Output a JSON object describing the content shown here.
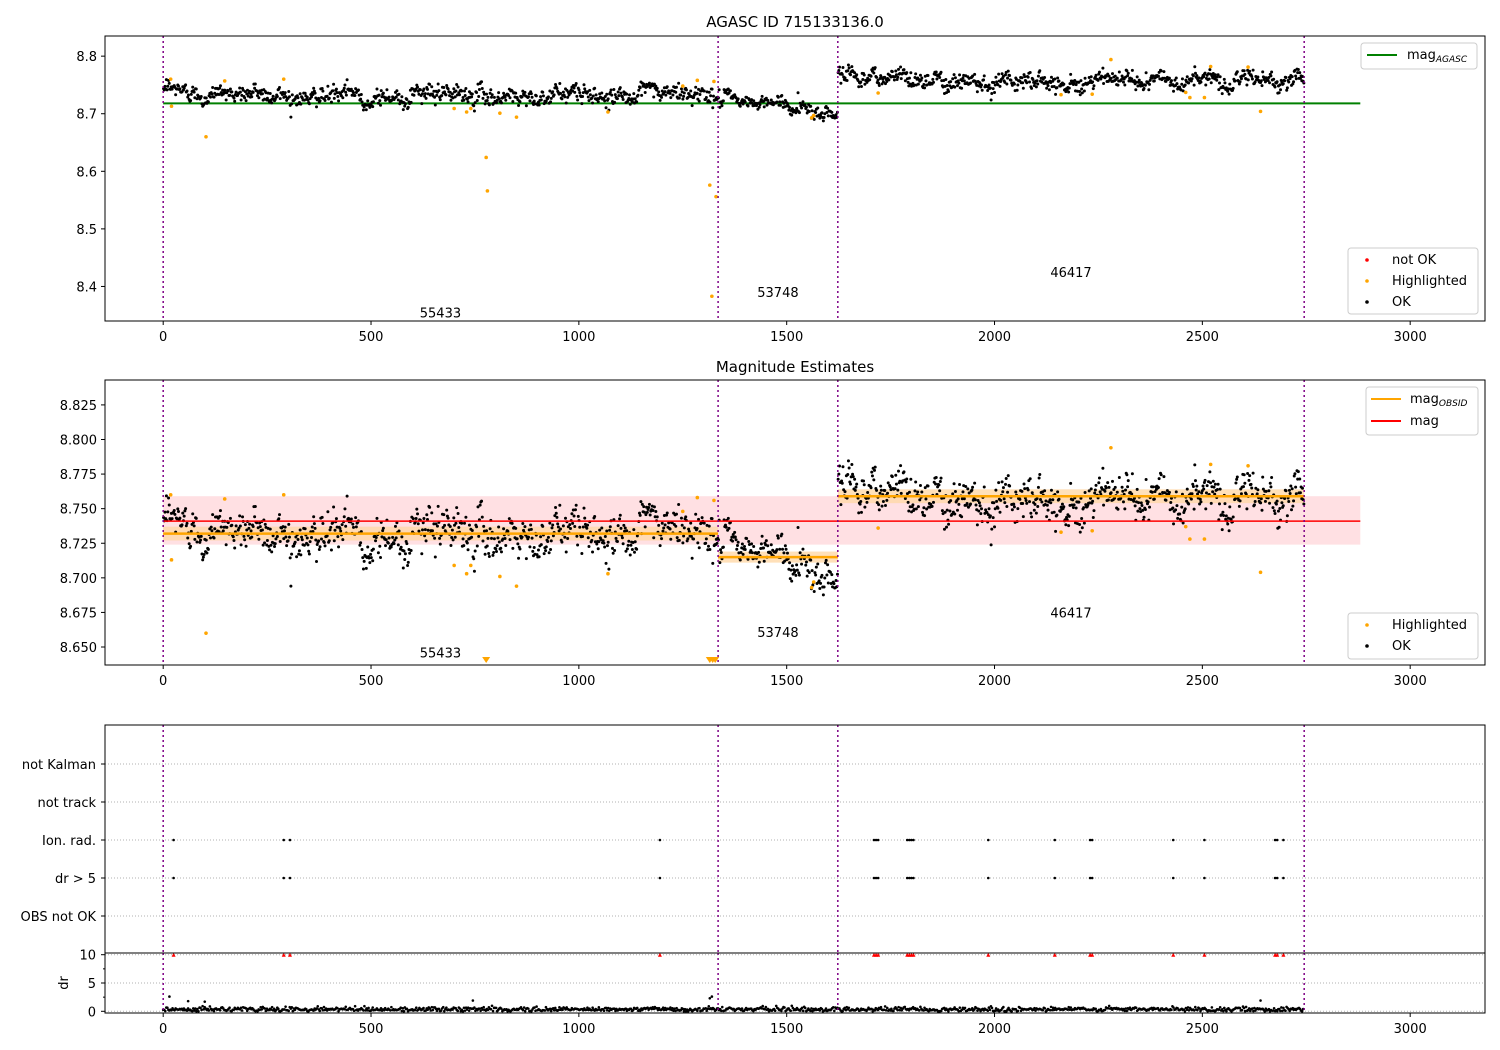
{
  "chart_data": [
    {
      "type": "scatter",
      "title": "AGASC ID 715133136.0",
      "xlim": [
        -140,
        3180
      ],
      "ylim": [
        8.34,
        8.835
      ],
      "xticks": [
        0,
        500,
        1000,
        1500,
        2000,
        2500,
        3000
      ],
      "yticks": [
        8.4,
        8.5,
        8.6,
        8.7,
        8.8
      ],
      "ytick_labels": [
        "8.4",
        "8.5",
        "8.6",
        "8.7",
        "8.8"
      ],
      "obsid_boundaries": [
        0,
        1335,
        1623,
        2745
      ],
      "obsid_labels": [
        {
          "text": "55433",
          "x": 667,
          "y": 8.355
        },
        {
          "text": "53748",
          "x": 1479,
          "y": 8.39
        },
        {
          "text": "46417",
          "x": 2184,
          "y": 8.425
        }
      ],
      "hlines": [
        {
          "name": "mag_AGASC",
          "y": 8.718,
          "x0": 0,
          "x1": 2880,
          "color": "#008000"
        }
      ],
      "legend_top": [
        {
          "label": "mag",
          "sub": "AGASC",
          "color": "#008000",
          "kind": "line"
        }
      ],
      "legend_bottom": [
        {
          "label": "not OK",
          "color": "#ff0000",
          "kind": "dot"
        },
        {
          "label": "Highlighted",
          "color": "#ffa500",
          "kind": "dot"
        },
        {
          "label": "OK",
          "color": "#000000",
          "kind": "dot"
        }
      ],
      "segments": [
        {
          "x0": 0,
          "x1": 1335,
          "mean": 8.732,
          "sd": 0.0085,
          "n": 780,
          "trend": [
            [
              0,
              8.74
            ],
            [
              400,
              8.73
            ],
            [
              800,
              8.732
            ],
            [
              1335,
              8.735
            ]
          ]
        },
        {
          "x0": 1335,
          "x1": 1623,
          "mean": 8.715,
          "sd": 0.0075,
          "n": 170,
          "trend": [
            [
              1335,
              8.722
            ],
            [
              1500,
              8.715
            ],
            [
              1623,
              8.702
            ]
          ]
        },
        {
          "x0": 1623,
          "x1": 2745,
          "mean": 8.758,
          "sd": 0.0085,
          "n": 680,
          "trend": [
            [
              1623,
              8.768
            ],
            [
              2000,
              8.758
            ],
            [
              2400,
              8.757
            ],
            [
              2745,
              8.76
            ]
          ]
        }
      ],
      "highlighted": [
        [
          18,
          8.76
        ],
        [
          20,
          8.713
        ],
        [
          103,
          8.66
        ],
        [
          148,
          8.757
        ],
        [
          290,
          8.76
        ],
        [
          700,
          8.709
        ],
        [
          730,
          8.703
        ],
        [
          740,
          8.709
        ],
        [
          777,
          8.624
        ],
        [
          780,
          8.566
        ],
        [
          810,
          8.701
        ],
        [
          850,
          8.694
        ],
        [
          1070,
          8.703
        ],
        [
          1250,
          8.748
        ],
        [
          1285,
          8.758
        ],
        [
          1315,
          8.576
        ],
        [
          1320,
          8.383
        ],
        [
          1325,
          8.756
        ],
        [
          1330,
          8.556
        ],
        [
          1560,
          8.693
        ],
        [
          1565,
          8.697
        ],
        [
          1720,
          8.736
        ],
        [
          2160,
          8.733
        ],
        [
          2235,
          8.734
        ],
        [
          2280,
          8.794
        ],
        [
          2460,
          8.737
        ],
        [
          2470,
          8.728
        ],
        [
          2505,
          8.728
        ],
        [
          2520,
          8.782
        ],
        [
          2610,
          8.781
        ],
        [
          2640,
          8.704
        ]
      ]
    },
    {
      "type": "scatter",
      "title": "Magnitude Estimates",
      "xlim": [
        -140,
        3180
      ],
      "ylim": [
        8.637,
        8.843
      ],
      "xticks": [
        0,
        500,
        1000,
        1500,
        2000,
        2500,
        3000
      ],
      "yticks": [
        8.65,
        8.675,
        8.7,
        8.725,
        8.75,
        8.775,
        8.8,
        8.825
      ],
      "ytick_labels": [
        "8.650",
        "8.675",
        "8.700",
        "8.725",
        "8.750",
        "8.775",
        "8.800",
        "8.825"
      ],
      "obsid_boundaries": [
        0,
        1335,
        1623,
        2745
      ],
      "obsid_labels": [
        {
          "text": "55433",
          "x": 667,
          "y": 8.646
        },
        {
          "text": "53748",
          "x": 1479,
          "y": 8.661
        },
        {
          "text": "46417",
          "x": 2184,
          "y": 8.675
        }
      ],
      "mag": {
        "y": 8.741,
        "band": [
          8.724,
          8.759
        ],
        "x0": 0,
        "x1": 2880,
        "color": "#ff0000",
        "band_color": "#ffe0e3"
      },
      "mag_obsid": [
        {
          "x0": 0,
          "x1": 1335,
          "y": 8.732,
          "band": [
            8.727,
            8.737
          ]
        },
        {
          "x0": 1335,
          "x1": 1623,
          "y": 8.715,
          "band": [
            8.711,
            8.719
          ]
        },
        {
          "x0": 1623,
          "x1": 2745,
          "y": 8.759,
          "band": [
            8.754,
            8.764
          ]
        }
      ],
      "legend_top": [
        {
          "label": "mag",
          "sub": "OBSID",
          "color": "#ffa500",
          "kind": "line"
        },
        {
          "label": "mag",
          "sub": "",
          "color": "#ff0000",
          "kind": "line"
        }
      ],
      "legend_bottom": [
        {
          "label": "Highlighted",
          "color": "#ffa500",
          "kind": "dot"
        },
        {
          "label": "OK",
          "color": "#000000",
          "kind": "dot"
        }
      ],
      "offscale_markers": [
        [
          777,
          8.639
        ],
        [
          1315,
          8.639
        ],
        [
          1322,
          8.639
        ],
        [
          1328,
          8.639
        ]
      ]
    },
    {
      "type": "scatter",
      "title": "",
      "xlim": [
        -140,
        3180
      ],
      "flag_rows": [
        "not Kalman",
        "not track",
        "Ion. rad.",
        "dr > 5",
        "OBS not OK"
      ],
      "flag_points_x": [
        25,
        290,
        305,
        1195,
        1710,
        1715,
        1720,
        1790,
        1795,
        1800,
        1805,
        1985,
        2145,
        2230,
        2235,
        2430,
        2505,
        2675,
        2680,
        2695
      ],
      "dr_ylim": [
        -0.3,
        10.3
      ],
      "dr_yticks": [
        0,
        5,
        10
      ],
      "dr_ylabel": "dr",
      "dr_high_x": [
        25,
        290,
        305,
        1195,
        1710,
        1715,
        1720,
        1790,
        1795,
        1800,
        1805,
        1985,
        2145,
        2230,
        2235,
        2430,
        2505,
        2675,
        2680,
        2695
      ],
      "dr_outliers": [
        [
          15,
          2.6
        ],
        [
          60,
          1.8
        ],
        [
          100,
          1.7
        ],
        [
          745,
          1.9
        ],
        [
          1315,
          2.3
        ],
        [
          1320,
          2.6
        ],
        [
          2640,
          1.9
        ]
      ],
      "xticks": [
        0,
        500,
        1000,
        1500,
        2000,
        2500,
        3000
      ],
      "obsid_boundaries": [
        0,
        1335,
        1623,
        2745
      ]
    }
  ]
}
